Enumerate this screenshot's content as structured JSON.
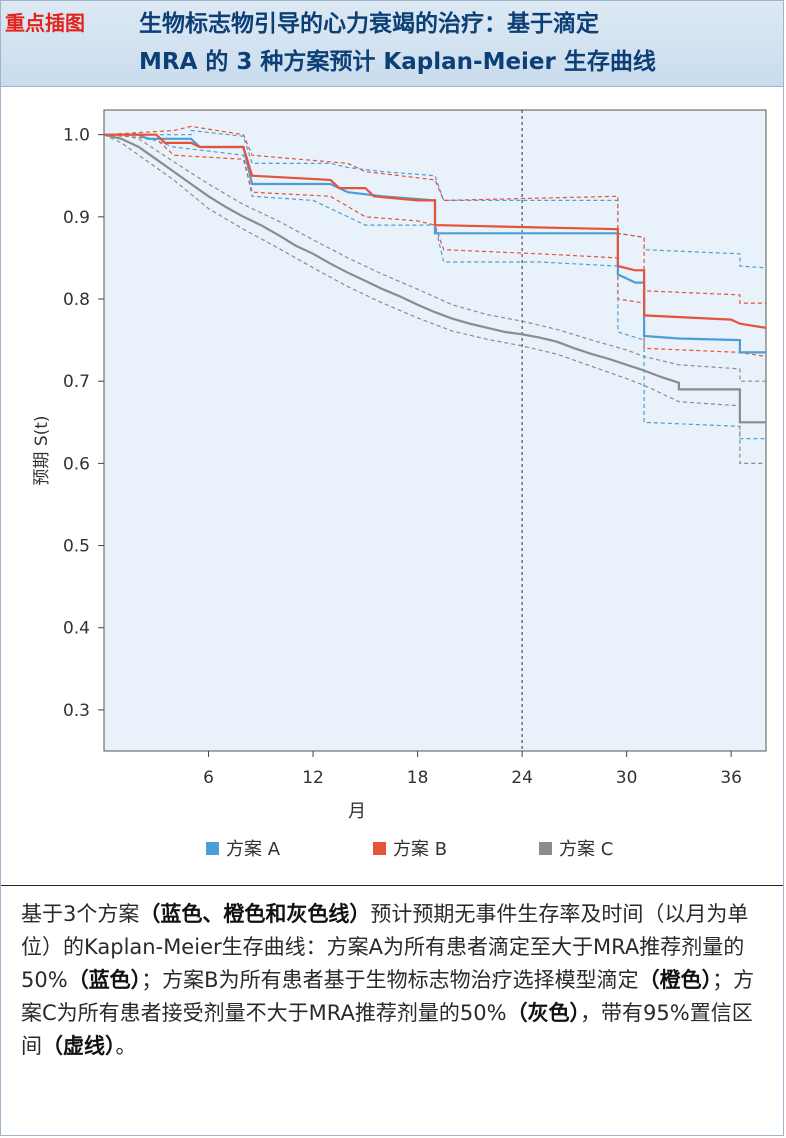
{
  "header": {
    "tag": "重点插图",
    "title_line1": "生物标志物引导的心力衰竭的治疗：基于滴定",
    "title_line2": "MRA 的 3 种方案预计 Kaplan-Meier 生存曲线"
  },
  "chart_data": {
    "type": "line",
    "title": "",
    "xlabel": "月",
    "ylabel": "预期 S(t)",
    "xlim": [
      0,
      38
    ],
    "ylim": [
      0.25,
      1.03
    ],
    "xticks": [
      6,
      12,
      18,
      24,
      30,
      36
    ],
    "yticks": [
      0.3,
      0.4,
      0.5,
      0.6,
      0.7,
      0.8,
      0.9,
      1.0
    ],
    "ytick_labels": [
      "0.3",
      "0.4",
      "0.5",
      "0.6",
      "0.7",
      "0.8",
      "0.9",
      "1.0"
    ],
    "reference_line_x": 24,
    "legend_position": "bottom",
    "grid": false,
    "series": [
      {
        "name": "方案 A",
        "color": "#4a9fd8",
        "points": [
          [
            0,
            1.0
          ],
          [
            2,
            1.0
          ],
          [
            2.5,
            0.995
          ],
          [
            5,
            0.995
          ],
          [
            5.5,
            0.985
          ],
          [
            8,
            0.985
          ],
          [
            8.5,
            0.94
          ],
          [
            13,
            0.94
          ],
          [
            14,
            0.93
          ],
          [
            16,
            0.925
          ],
          [
            19,
            0.92
          ],
          [
            19,
            0.88
          ],
          [
            29.5,
            0.88
          ],
          [
            29.5,
            0.83
          ],
          [
            30.5,
            0.82
          ],
          [
            31,
            0.82
          ],
          [
            31,
            0.755
          ],
          [
            33,
            0.752
          ],
          [
            36.5,
            0.75
          ],
          [
            36.5,
            0.735
          ],
          [
            38,
            0.735
          ]
        ],
        "lower": [
          [
            0,
            1.0
          ],
          [
            2,
            1.0
          ],
          [
            4,
            0.985
          ],
          [
            8,
            0.975
          ],
          [
            8.5,
            0.925
          ],
          [
            12,
            0.92
          ],
          [
            14,
            0.9
          ],
          [
            15,
            0.89
          ],
          [
            19,
            0.89
          ],
          [
            19.5,
            0.845
          ],
          [
            25,
            0.845
          ],
          [
            29.5,
            0.84
          ],
          [
            29.5,
            0.76
          ],
          [
            31,
            0.75
          ],
          [
            31,
            0.65
          ],
          [
            36.5,
            0.645
          ],
          [
            36.5,
            0.63
          ],
          [
            38,
            0.63
          ]
        ],
        "upper": [
          [
            0,
            1.0
          ],
          [
            5,
            1.0
          ],
          [
            5,
            1.005
          ],
          [
            8,
            0.998
          ],
          [
            8.5,
            0.965
          ],
          [
            13,
            0.965
          ],
          [
            14,
            0.96
          ],
          [
            16,
            0.955
          ],
          [
            19,
            0.95
          ],
          [
            19.5,
            0.92
          ],
          [
            29.5,
            0.92
          ],
          [
            29.5,
            0.88
          ],
          [
            31,
            0.875
          ],
          [
            31,
            0.86
          ],
          [
            36.5,
            0.855
          ],
          [
            36.5,
            0.84
          ],
          [
            38,
            0.838
          ]
        ]
      },
      {
        "name": "方案 B",
        "color": "#e5533a",
        "points": [
          [
            0,
            1.0
          ],
          [
            3,
            1.0
          ],
          [
            3.5,
            0.99
          ],
          [
            5,
            0.99
          ],
          [
            5.5,
            0.985
          ],
          [
            8,
            0.985
          ],
          [
            8.5,
            0.95
          ],
          [
            13,
            0.945
          ],
          [
            13.5,
            0.935
          ],
          [
            15,
            0.935
          ],
          [
            15.5,
            0.925
          ],
          [
            18,
            0.92
          ],
          [
            19,
            0.92
          ],
          [
            19,
            0.89
          ],
          [
            29.5,
            0.885
          ],
          [
            29.5,
            0.84
          ],
          [
            30.5,
            0.835
          ],
          [
            31,
            0.835
          ],
          [
            31,
            0.78
          ],
          [
            36,
            0.775
          ],
          [
            36.5,
            0.77
          ],
          [
            38,
            0.765
          ]
        ],
        "lower": [
          [
            0,
            1.0
          ],
          [
            3,
            0.995
          ],
          [
            4,
            0.975
          ],
          [
            8,
            0.97
          ],
          [
            8.5,
            0.93
          ],
          [
            13,
            0.925
          ],
          [
            15,
            0.9
          ],
          [
            18,
            0.895
          ],
          [
            19,
            0.89
          ],
          [
            19.5,
            0.86
          ],
          [
            25,
            0.855
          ],
          [
            29.5,
            0.85
          ],
          [
            29.5,
            0.8
          ],
          [
            31,
            0.795
          ],
          [
            31,
            0.74
          ],
          [
            36.5,
            0.735
          ],
          [
            38,
            0.73
          ]
        ],
        "upper": [
          [
            0,
            1.0
          ],
          [
            4,
            1.005
          ],
          [
            5,
            1.01
          ],
          [
            8,
            1.0
          ],
          [
            8.5,
            0.975
          ],
          [
            14,
            0.965
          ],
          [
            15,
            0.955
          ],
          [
            19,
            0.945
          ],
          [
            19.5,
            0.92
          ],
          [
            29.5,
            0.925
          ],
          [
            29.5,
            0.88
          ],
          [
            31,
            0.875
          ],
          [
            31,
            0.81
          ],
          [
            36.5,
            0.805
          ],
          [
            36.5,
            0.795
          ],
          [
            38,
            0.795
          ]
        ]
      },
      {
        "name": "方案 C",
        "color": "#8c8c8c",
        "points": [
          [
            0,
            1.0
          ],
          [
            1,
            0.995
          ],
          [
            2,
            0.985
          ],
          [
            3,
            0.97
          ],
          [
            4,
            0.955
          ],
          [
            5,
            0.94
          ],
          [
            6,
            0.925
          ],
          [
            7,
            0.912
          ],
          [
            8,
            0.9
          ],
          [
            9,
            0.89
          ],
          [
            10,
            0.878
          ],
          [
            11,
            0.865
          ],
          [
            12,
            0.855
          ],
          [
            13,
            0.843
          ],
          [
            14,
            0.832
          ],
          [
            15,
            0.822
          ],
          [
            16,
            0.812
          ],
          [
            17,
            0.803
          ],
          [
            18,
            0.793
          ],
          [
            19,
            0.784
          ],
          [
            20,
            0.776
          ],
          [
            21,
            0.77
          ],
          [
            22,
            0.765
          ],
          [
            23,
            0.76
          ],
          [
            24,
            0.757
          ],
          [
            25,
            0.753
          ],
          [
            26,
            0.748
          ],
          [
            27,
            0.74
          ],
          [
            28,
            0.733
          ],
          [
            29,
            0.727
          ],
          [
            30,
            0.72
          ],
          [
            31,
            0.713
          ],
          [
            32,
            0.705
          ],
          [
            33,
            0.698
          ],
          [
            33,
            0.69
          ],
          [
            36.5,
            0.69
          ],
          [
            36.5,
            0.65
          ],
          [
            38,
            0.65
          ]
        ],
        "lower": [
          [
            0,
            1.0
          ],
          [
            1,
            0.99
          ],
          [
            2,
            0.975
          ],
          [
            4,
            0.945
          ],
          [
            6,
            0.91
          ],
          [
            8,
            0.885
          ],
          [
            10,
            0.862
          ],
          [
            12,
            0.838
          ],
          [
            14,
            0.815
          ],
          [
            16,
            0.795
          ],
          [
            18,
            0.777
          ],
          [
            20,
            0.761
          ],
          [
            22,
            0.751
          ],
          [
            24,
            0.743
          ],
          [
            26,
            0.733
          ],
          [
            28,
            0.718
          ],
          [
            30,
            0.703
          ],
          [
            31,
            0.695
          ],
          [
            33,
            0.675
          ],
          [
            36.5,
            0.67
          ],
          [
            36.5,
            0.6
          ],
          [
            38,
            0.6
          ]
        ],
        "upper": [
          [
            0,
            1.0
          ],
          [
            1,
            1.0
          ],
          [
            2,
            0.995
          ],
          [
            4,
            0.967
          ],
          [
            6,
            0.94
          ],
          [
            8,
            0.915
          ],
          [
            10,
            0.895
          ],
          [
            12,
            0.872
          ],
          [
            14,
            0.85
          ],
          [
            16,
            0.83
          ],
          [
            18,
            0.812
          ],
          [
            20,
            0.793
          ],
          [
            22,
            0.781
          ],
          [
            24,
            0.773
          ],
          [
            26,
            0.763
          ],
          [
            28,
            0.75
          ],
          [
            30,
            0.738
          ],
          [
            31,
            0.73
          ],
          [
            33,
            0.72
          ],
          [
            36.5,
            0.715
          ],
          [
            36.5,
            0.7
          ],
          [
            38,
            0.7
          ]
        ]
      }
    ]
  },
  "caption": {
    "parts": [
      {
        "text": "基于3个方案",
        "bold": false
      },
      {
        "text": "（蓝色、橙色和灰色线）",
        "bold": true
      },
      {
        "text": "预计预期无事件生存率及时间（以月为单位）的Kaplan-Meier生存曲线：方案A为所有患者滴定至大于MRA推荐剂量的50%",
        "bold": false
      },
      {
        "text": "（蓝色）",
        "bold": true
      },
      {
        "text": "；方案B为所有患者基于生物标志物治疗选择模型滴定",
        "bold": false
      },
      {
        "text": "（橙色）",
        "bold": true
      },
      {
        "text": "；方案C为所有患者接受剂量不大于MRA推荐剂量的50%",
        "bold": false
      },
      {
        "text": "（灰色）",
        "bold": true
      },
      {
        "text": "，带有95%置信区间",
        "bold": false
      },
      {
        "text": "（虚线）",
        "bold": true
      },
      {
        "text": "。",
        "bold": false
      }
    ]
  }
}
